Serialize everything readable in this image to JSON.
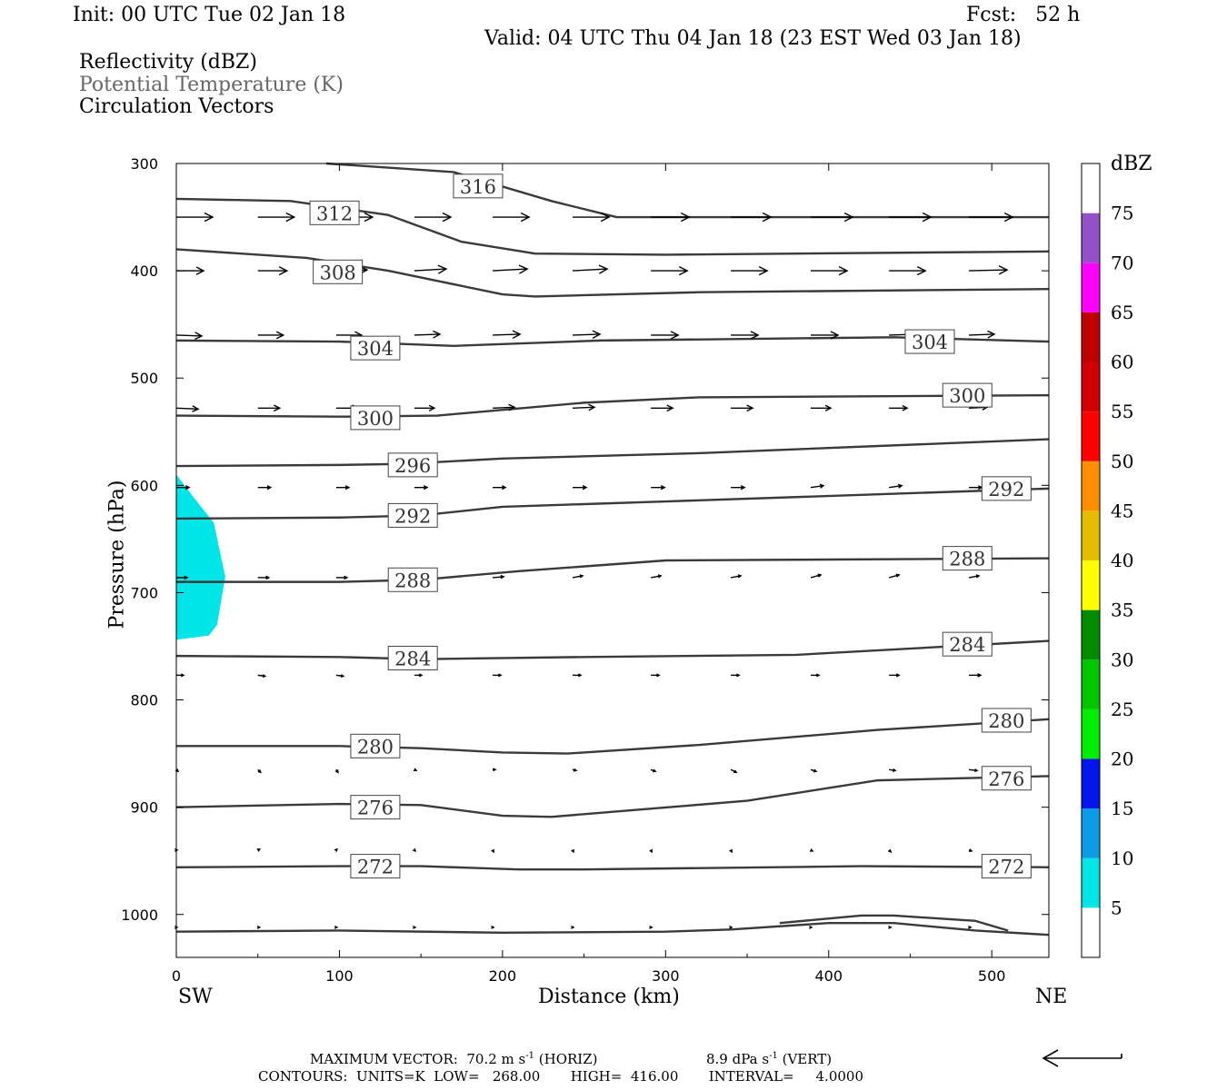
{
  "header": {
    "init": "Init: 00 UTC Tue 02 Jan 18",
    "fcst": "Fcst:   52 h",
    "valid": "Valid: 04 UTC Thu 04 Jan 18 (23 EST Wed 03 Jan 18)",
    "field1": "Reflectivity (dBZ)",
    "field2": "Potential Temperature (K)",
    "field3": "Circulation Vectors"
  },
  "footer": {
    "max_vector_label": "MAXIMUM VECTOR:",
    "horiz": "70.2 m s",
    "horiz_tag": "(HORIZ)",
    "vert": "8.9 dPa s",
    "vert_tag": "(VERT)",
    "exp": "-1",
    "contours": "CONTOURS:  UNITS=K  LOW=   268.00       HIGH=  416.00       INTERVAL=     4.0000"
  },
  "colorbar": {
    "units": "dBZ",
    "levels": [
      "5",
      "10",
      "15",
      "20",
      "25",
      "30",
      "35",
      "40",
      "45",
      "50",
      "55",
      "60",
      "65",
      "70",
      "75"
    ],
    "colors": [
      "#00e5e8",
      "#0b9be5",
      "#0216ec",
      "#00ed00",
      "#00c600",
      "#028d00",
      "#ffff00",
      "#e5bd00",
      "#fd8e00",
      "#ff0000",
      "#d20000",
      "#bf0000",
      "#ff00ff",
      "#9450c7",
      "#ffffff"
    ]
  },
  "chart_data": {
    "type": "line",
    "title": "",
    "xlabel": "Distance (km)",
    "ylabel": "Pressure (hPa)",
    "x_ticks": [
      "0",
      "100",
      "200",
      "300",
      "400",
      "500"
    ],
    "y_ticks": [
      "300",
      "400",
      "500",
      "600",
      "700",
      "800",
      "900",
      "1000"
    ],
    "xlim": [
      0,
      535
    ],
    "ylim": [
      1040,
      300
    ],
    "x_endpoints": [
      "SW",
      "NE"
    ],
    "reflectivity_region": {
      "dbz_range": [
        5,
        10
      ],
      "polygon": [
        [
          0,
          590
        ],
        [
          10,
          610
        ],
        [
          23,
          635
        ],
        [
          30,
          685
        ],
        [
          25,
          730
        ],
        [
          20,
          740
        ],
        [
          0,
          744
        ]
      ]
    },
    "contours": [
      {
        "value": "316",
        "points": [
          [
            92,
            300
          ],
          [
            170,
            308
          ],
          [
            230,
            335
          ],
          [
            270,
            350
          ],
          [
            535,
            350
          ]
        ],
        "labels": [
          [
            185,
            321
          ]
        ]
      },
      {
        "value": "312",
        "points": [
          [
            0,
            333
          ],
          [
            70,
            335
          ],
          [
            130,
            348
          ],
          [
            175,
            373
          ],
          [
            220,
            384
          ],
          [
            300,
            385
          ],
          [
            535,
            382
          ]
        ],
        "labels": [
          [
            97,
            346
          ]
        ]
      },
      {
        "value": "308",
        "points": [
          [
            0,
            380
          ],
          [
            80,
            388
          ],
          [
            130,
            400
          ],
          [
            200,
            422
          ],
          [
            220,
            424
          ],
          [
            320,
            420
          ],
          [
            535,
            417
          ]
        ],
        "labels": [
          [
            99,
            401
          ]
        ]
      },
      {
        "value": "304",
        "points": [
          [
            0,
            465
          ],
          [
            100,
            466
          ],
          [
            170,
            470
          ],
          [
            260,
            465
          ],
          [
            440,
            462
          ],
          [
            535,
            466
          ]
        ],
        "labels": [
          [
            122,
            472
          ],
          [
            462,
            466
          ]
        ]
      },
      {
        "value": "300",
        "points": [
          [
            0,
            535
          ],
          [
            100,
            536
          ],
          [
            160,
            535
          ],
          [
            250,
            523
          ],
          [
            320,
            518
          ],
          [
            535,
            516
          ]
        ],
        "labels": [
          [
            122,
            537
          ],
          [
            485,
            516
          ]
        ]
      },
      {
        "value": "296",
        "points": [
          [
            0,
            582
          ],
          [
            100,
            581
          ],
          [
            140,
            580
          ],
          [
            200,
            575
          ],
          [
            320,
            570
          ],
          [
            535,
            557
          ]
        ],
        "labels": [
          [
            145,
            581
          ]
        ]
      },
      {
        "value": "292",
        "points": [
          [
            0,
            631
          ],
          [
            100,
            630
          ],
          [
            150,
            628
          ],
          [
            200,
            620
          ],
          [
            300,
            615
          ],
          [
            535,
            603
          ]
        ],
        "labels": [
          [
            145,
            628
          ],
          [
            509,
            603
          ]
        ]
      },
      {
        "value": "288",
        "points": [
          [
            0,
            690
          ],
          [
            100,
            690
          ],
          [
            150,
            688
          ],
          [
            210,
            680
          ],
          [
            300,
            670
          ],
          [
            535,
            668
          ]
        ],
        "labels": [
          [
            145,
            688
          ],
          [
            485,
            668
          ]
        ]
      },
      {
        "value": "284",
        "points": [
          [
            0,
            759
          ],
          [
            100,
            760
          ],
          [
            150,
            762
          ],
          [
            250,
            760
          ],
          [
            380,
            758
          ],
          [
            535,
            745
          ]
        ],
        "labels": [
          [
            145,
            761
          ],
          [
            485,
            748
          ]
        ]
      },
      {
        "value": "280",
        "points": [
          [
            0,
            843
          ],
          [
            100,
            843
          ],
          [
            150,
            845
          ],
          [
            200,
            849
          ],
          [
            240,
            850
          ],
          [
            320,
            842
          ],
          [
            430,
            828
          ],
          [
            535,
            818
          ]
        ],
        "labels": [
          [
            122,
            843
          ],
          [
            509,
            819
          ]
        ]
      },
      {
        "value": "276",
        "points": [
          [
            0,
            900
          ],
          [
            100,
            897
          ],
          [
            150,
            898
          ],
          [
            200,
            908
          ],
          [
            230,
            909
          ],
          [
            350,
            894
          ],
          [
            430,
            875
          ],
          [
            535,
            871
          ]
        ],
        "labels": [
          [
            122,
            900
          ],
          [
            509,
            873
          ]
        ]
      },
      {
        "value": "272",
        "points": [
          [
            0,
            956
          ],
          [
            100,
            955
          ],
          [
            150,
            955
          ],
          [
            210,
            958
          ],
          [
            250,
            958
          ],
          [
            420,
            955
          ],
          [
            535,
            956
          ]
        ],
        "labels": [
          [
            122,
            955
          ],
          [
            509,
            955
          ]
        ]
      },
      {
        "value": "268",
        "points": [
          [
            0,
            1016
          ],
          [
            100,
            1015
          ],
          [
            200,
            1017
          ],
          [
            300,
            1016
          ],
          [
            340,
            1014
          ],
          [
            400,
            1008
          ],
          [
            440,
            1008
          ],
          [
            490,
            1015
          ],
          [
            535,
            1019
          ]
        ],
        "labels": []
      },
      {
        "value": "268",
        "points": [
          [
            370,
            1008
          ],
          [
            420,
            1001
          ],
          [
            440,
            1001
          ],
          [
            490,
            1006
          ],
          [
            510,
            1015
          ]
        ],
        "labels": []
      }
    ],
    "vectors": {
      "rows": [
        {
          "p": 350,
          "xs": [
            0,
            50,
            98,
            146,
            194,
            243,
            291,
            340,
            389,
            437,
            486
          ],
          "u": [
            40,
            40,
            40,
            40,
            40,
            40,
            42,
            44,
            46,
            46,
            48
          ],
          "w": [
            0,
            0,
            0,
            0,
            0,
            0,
            0,
            0,
            0,
            0,
            0
          ]
        },
        {
          "p": 400,
          "xs": [
            0,
            50,
            98,
            146,
            194,
            243,
            291,
            340,
            389,
            437,
            486
          ],
          "u": [
            30,
            32,
            34,
            35,
            38,
            38,
            40,
            40,
            40,
            40,
            42
          ],
          "w": [
            0,
            0,
            1,
            2,
            2,
            2,
            0,
            0,
            0,
            0,
            1
          ]
        },
        {
          "p": 460,
          "xs": [
            0,
            50,
            98,
            146,
            194,
            243,
            291,
            340,
            389,
            437,
            486
          ],
          "u": [
            28,
            28,
            28,
            28,
            30,
            30,
            30,
            30,
            30,
            30,
            28
          ],
          "w": [
            -1,
            0,
            0,
            1,
            1,
            1,
            0,
            0,
            0,
            1,
            1
          ]
        },
        {
          "p": 528,
          "xs": [
            0,
            50,
            98,
            146,
            194,
            243,
            291,
            340,
            389,
            437,
            486
          ],
          "u": [
            24,
            24,
            24,
            22,
            24,
            24,
            24,
            24,
            22,
            20,
            20
          ],
          "w": [
            -1,
            0,
            0,
            0,
            1,
            1,
            0,
            0,
            0,
            0,
            1
          ]
        },
        {
          "p": 602,
          "xs": [
            0,
            50,
            98,
            146,
            194,
            243,
            291,
            340,
            389,
            437,
            486
          ],
          "u": [
            14,
            14,
            14,
            14,
            14,
            15,
            15,
            15,
            14,
            14,
            14
          ],
          "w": [
            0,
            0,
            0,
            0,
            0,
            0,
            0,
            0,
            2,
            2,
            0
          ]
        },
        {
          "p": 686,
          "xs": [
            0,
            50,
            98,
            146,
            194,
            243,
            291,
            340,
            389,
            437,
            486
          ],
          "u": [
            12,
            12,
            12,
            12,
            12,
            11,
            11,
            11,
            11,
            11,
            11
          ],
          "w": [
            0,
            0,
            0,
            0,
            1,
            2,
            2,
            2,
            3,
            3,
            2
          ]
        },
        {
          "p": 777,
          "xs": [
            0,
            50,
            98,
            146,
            194,
            243,
            291,
            340,
            389,
            437,
            486
          ],
          "u": [
            8,
            8,
            8,
            8,
            9,
            9,
            9,
            9,
            9,
            11,
            13
          ],
          "w": [
            0,
            -1,
            -1,
            0,
            0,
            0,
            0,
            0,
            0,
            0,
            0
          ]
        },
        {
          "p": 865,
          "xs": [
            0,
            50,
            98,
            146,
            194,
            243,
            291,
            340,
            389,
            437,
            486
          ],
          "u": [
            2,
            3,
            2,
            2,
            3,
            4,
            5,
            6,
            6,
            7,
            9
          ],
          "w": [
            -2,
            -3,
            -3,
            -1,
            0,
            -1,
            -2,
            -3,
            -2,
            -1,
            -1
          ]
        },
        {
          "p": 940,
          "xs": [
            0,
            50,
            98,
            146,
            194,
            243,
            291,
            340,
            389,
            437,
            486
          ],
          "u": [
            1,
            2,
            1,
            1,
            1,
            1,
            1,
            1,
            2,
            2,
            3
          ],
          "w": [
            0,
            1,
            1,
            -1,
            -2,
            -2,
            -2,
            -2,
            -1,
            -2,
            -1
          ]
        },
        {
          "p": 1012,
          "xs": [
            0,
            50,
            98,
            146,
            194,
            243,
            291,
            340,
            389,
            437,
            486
          ],
          "u": [
            1,
            2,
            1,
            1,
            1,
            1,
            1,
            1,
            1,
            2,
            2
          ],
          "w": [
            0,
            0,
            0,
            0,
            0,
            0,
            0,
            0,
            0,
            0,
            0
          ]
        }
      ]
    },
    "grid": false
  }
}
